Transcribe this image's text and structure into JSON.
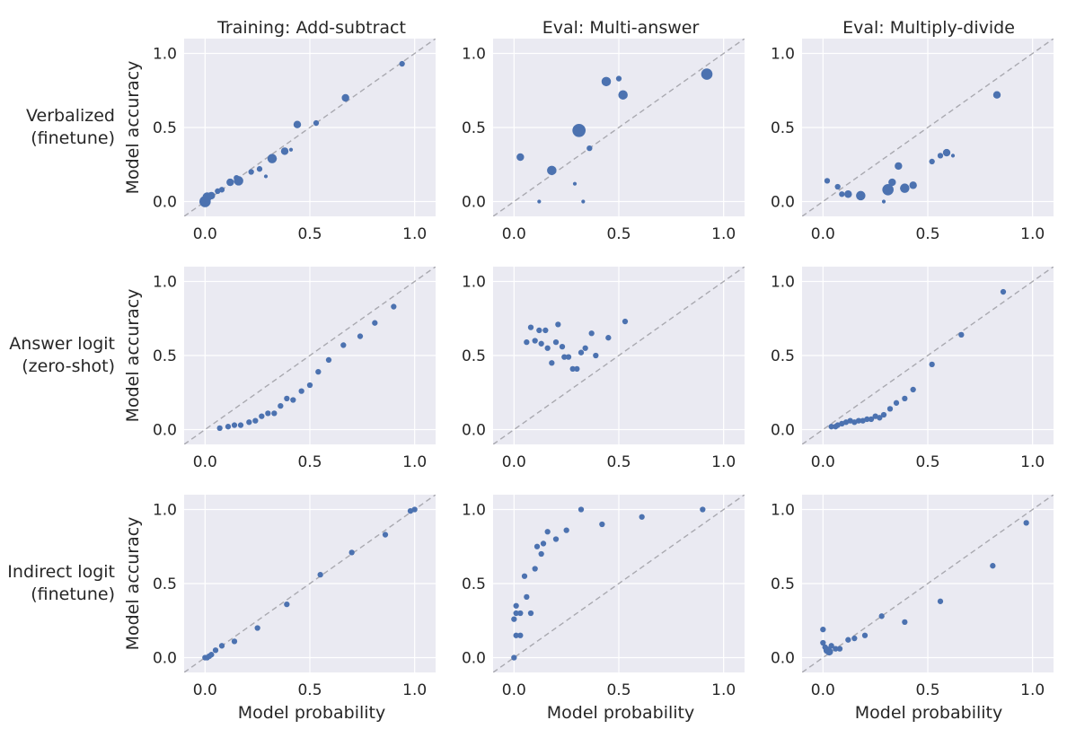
{
  "colors": {
    "background": "#eaeaf2",
    "grid": "#ffffff",
    "point": "#4c72b0",
    "reference_line": "#a9a9b0"
  },
  "column_titles": [
    "Training: Add-subtract",
    "Eval: Multi-answer",
    "Eval: Multiply-divide"
  ],
  "row_labels": [
    {
      "line1": "Verbalized",
      "line2": "(finetune)"
    },
    {
      "line1": "Answer logit",
      "line2": "(zero-shot)"
    },
    {
      "line1": "Indirect logit",
      "line2": "(finetune)"
    }
  ],
  "xlabel": "Model probability",
  "ylabel": "Model accuracy",
  "chart_data": [
    {
      "type": "scatter",
      "row": 0,
      "col": 0,
      "xlim": [
        -0.1,
        1.1
      ],
      "ylim": [
        -0.1,
        1.1
      ],
      "xticks": [
        0.0,
        0.5,
        1.0
      ],
      "yticks": [
        0.0,
        0.5,
        1.0
      ],
      "grid": true,
      "reference_line": "y=x",
      "points": [
        [
          0.0,
          0.0,
          6
        ],
        [
          0.01,
          0.03,
          5
        ],
        [
          0.03,
          0.04,
          4
        ],
        [
          0.06,
          0.07,
          3
        ],
        [
          0.08,
          0.08,
          3
        ],
        [
          0.12,
          0.13,
          4
        ],
        [
          0.16,
          0.14,
          5
        ],
        [
          0.15,
          0.16,
          3
        ],
        [
          0.22,
          0.2,
          3
        ],
        [
          0.26,
          0.22,
          3
        ],
        [
          0.29,
          0.17,
          2
        ],
        [
          0.32,
          0.29,
          5
        ],
        [
          0.38,
          0.34,
          4
        ],
        [
          0.41,
          0.35,
          2
        ],
        [
          0.44,
          0.52,
          4
        ],
        [
          0.53,
          0.53,
          3
        ],
        [
          0.67,
          0.7,
          4
        ],
        [
          0.94,
          0.93,
          3
        ]
      ]
    },
    {
      "type": "scatter",
      "row": 0,
      "col": 1,
      "xlim": [
        -0.1,
        1.1
      ],
      "ylim": [
        -0.1,
        1.1
      ],
      "xticks": [
        0.0,
        0.5,
        1.0
      ],
      "yticks": [
        0.0,
        0.5,
        1.0
      ],
      "grid": true,
      "reference_line": "y=x",
      "points": [
        [
          0.03,
          0.3,
          4
        ],
        [
          0.12,
          0.0,
          2
        ],
        [
          0.18,
          0.21,
          5
        ],
        [
          0.29,
          0.12,
          2
        ],
        [
          0.31,
          0.48,
          7
        ],
        [
          0.33,
          0.0,
          2
        ],
        [
          0.36,
          0.36,
          3
        ],
        [
          0.44,
          0.81,
          5
        ],
        [
          0.5,
          0.83,
          3
        ],
        [
          0.52,
          0.72,
          5
        ],
        [
          0.92,
          0.86,
          6
        ]
      ]
    },
    {
      "type": "scatter",
      "row": 0,
      "col": 2,
      "xlim": [
        -0.1,
        1.1
      ],
      "ylim": [
        -0.1,
        1.1
      ],
      "xticks": [
        0.0,
        0.5,
        1.0
      ],
      "yticks": [
        0.0,
        0.5,
        1.0
      ],
      "grid": true,
      "reference_line": "y=x",
      "points": [
        [
          0.02,
          0.14,
          3
        ],
        [
          0.07,
          0.1,
          3
        ],
        [
          0.09,
          0.05,
          3
        ],
        [
          0.12,
          0.05,
          4
        ],
        [
          0.18,
          0.04,
          5
        ],
        [
          0.29,
          0.0,
          2
        ],
        [
          0.31,
          0.08,
          6
        ],
        [
          0.33,
          0.13,
          4
        ],
        [
          0.36,
          0.24,
          4
        ],
        [
          0.39,
          0.09,
          5
        ],
        [
          0.43,
          0.11,
          4
        ],
        [
          0.52,
          0.27,
          3
        ],
        [
          0.56,
          0.31,
          3
        ],
        [
          0.59,
          0.33,
          4
        ],
        [
          0.62,
          0.31,
          2
        ],
        [
          0.83,
          0.72,
          4
        ]
      ]
    },
    {
      "type": "scatter",
      "row": 1,
      "col": 0,
      "xlim": [
        -0.1,
        1.1
      ],
      "ylim": [
        -0.1,
        1.1
      ],
      "xticks": [
        0.0,
        0.5,
        1.0
      ],
      "yticks": [
        0.0,
        0.5,
        1.0
      ],
      "grid": true,
      "reference_line": "y=x",
      "points": [
        [
          0.07,
          0.01,
          3
        ],
        [
          0.11,
          0.02,
          3
        ],
        [
          0.14,
          0.03,
          3
        ],
        [
          0.17,
          0.03,
          3
        ],
        [
          0.21,
          0.05,
          3
        ],
        [
          0.24,
          0.06,
          3
        ],
        [
          0.27,
          0.09,
          3
        ],
        [
          0.3,
          0.11,
          3
        ],
        [
          0.33,
          0.11,
          3
        ],
        [
          0.36,
          0.16,
          3
        ],
        [
          0.39,
          0.21,
          3
        ],
        [
          0.42,
          0.2,
          3
        ],
        [
          0.46,
          0.26,
          3
        ],
        [
          0.5,
          0.3,
          3
        ],
        [
          0.54,
          0.39,
          3
        ],
        [
          0.59,
          0.47,
          3
        ],
        [
          0.66,
          0.57,
          3
        ],
        [
          0.74,
          0.63,
          3
        ],
        [
          0.81,
          0.72,
          3
        ],
        [
          0.9,
          0.83,
          3
        ]
      ]
    },
    {
      "type": "scatter",
      "row": 1,
      "col": 1,
      "xlim": [
        -0.1,
        1.1
      ],
      "ylim": [
        -0.1,
        1.1
      ],
      "xticks": [
        0.0,
        0.5,
        1.0
      ],
      "yticks": [
        0.0,
        0.5,
        1.0
      ],
      "grid": true,
      "reference_line": "y=x",
      "points": [
        [
          0.06,
          0.59,
          3
        ],
        [
          0.08,
          0.69,
          3
        ],
        [
          0.1,
          0.6,
          3
        ],
        [
          0.12,
          0.67,
          3
        ],
        [
          0.13,
          0.58,
          3
        ],
        [
          0.15,
          0.67,
          3
        ],
        [
          0.16,
          0.55,
          3
        ],
        [
          0.18,
          0.45,
          3
        ],
        [
          0.2,
          0.59,
          3
        ],
        [
          0.21,
          0.71,
          3
        ],
        [
          0.23,
          0.56,
          3
        ],
        [
          0.24,
          0.49,
          3
        ],
        [
          0.26,
          0.49,
          3
        ],
        [
          0.28,
          0.41,
          3
        ],
        [
          0.3,
          0.41,
          3
        ],
        [
          0.32,
          0.52,
          3
        ],
        [
          0.34,
          0.55,
          3
        ],
        [
          0.37,
          0.65,
          3
        ],
        [
          0.39,
          0.5,
          3
        ],
        [
          0.45,
          0.62,
          3
        ],
        [
          0.53,
          0.73,
          3
        ]
      ]
    },
    {
      "type": "scatter",
      "row": 1,
      "col": 2,
      "xlim": [
        -0.1,
        1.1
      ],
      "ylim": [
        -0.1,
        1.1
      ],
      "xticks": [
        0.0,
        0.5,
        1.0
      ],
      "yticks": [
        0.0,
        0.5,
        1.0
      ],
      "grid": true,
      "reference_line": "y=x",
      "points": [
        [
          0.04,
          0.02,
          3
        ],
        [
          0.06,
          0.02,
          3
        ],
        [
          0.07,
          0.03,
          3
        ],
        [
          0.09,
          0.04,
          3
        ],
        [
          0.11,
          0.05,
          3
        ],
        [
          0.13,
          0.06,
          3
        ],
        [
          0.15,
          0.05,
          3
        ],
        [
          0.17,
          0.06,
          3
        ],
        [
          0.19,
          0.06,
          3
        ],
        [
          0.21,
          0.07,
          3
        ],
        [
          0.23,
          0.07,
          3
        ],
        [
          0.25,
          0.09,
          3
        ],
        [
          0.27,
          0.08,
          3
        ],
        [
          0.29,
          0.1,
          3
        ],
        [
          0.32,
          0.14,
          3
        ],
        [
          0.35,
          0.18,
          3
        ],
        [
          0.39,
          0.21,
          3
        ],
        [
          0.43,
          0.27,
          3
        ],
        [
          0.52,
          0.44,
          3
        ],
        [
          0.66,
          0.64,
          3
        ],
        [
          0.86,
          0.93,
          3
        ]
      ]
    },
    {
      "type": "scatter",
      "row": 2,
      "col": 0,
      "xlim": [
        -0.1,
        1.1
      ],
      "ylim": [
        -0.1,
        1.1
      ],
      "xticks": [
        0.0,
        0.5,
        1.0
      ],
      "yticks": [
        0.0,
        0.5,
        1.0
      ],
      "grid": true,
      "reference_line": "y=x",
      "points": [
        [
          0.0,
          0.0,
          3
        ],
        [
          0.01,
          0.0,
          3
        ],
        [
          0.02,
          0.01,
          3
        ],
        [
          0.03,
          0.02,
          3
        ],
        [
          0.05,
          0.05,
          3
        ],
        [
          0.08,
          0.08,
          3
        ],
        [
          0.14,
          0.11,
          3
        ],
        [
          0.25,
          0.2,
          3
        ],
        [
          0.39,
          0.36,
          3
        ],
        [
          0.55,
          0.56,
          3
        ],
        [
          0.7,
          0.71,
          3
        ],
        [
          0.86,
          0.83,
          3
        ],
        [
          0.98,
          0.99,
          3
        ],
        [
          1.0,
          1.0,
          3
        ]
      ]
    },
    {
      "type": "scatter",
      "row": 2,
      "col": 1,
      "xlim": [
        -0.1,
        1.1
      ],
      "ylim": [
        -0.1,
        1.1
      ],
      "xticks": [
        0.0,
        0.5,
        1.0
      ],
      "yticks": [
        0.0,
        0.5,
        1.0
      ],
      "grid": true,
      "reference_line": "y=x",
      "points": [
        [
          0.0,
          0.0,
          3
        ],
        [
          0.0,
          0.26,
          3
        ],
        [
          0.01,
          0.3,
          3
        ],
        [
          0.01,
          0.35,
          3
        ],
        [
          0.01,
          0.15,
          3
        ],
        [
          0.03,
          0.15,
          3
        ],
        [
          0.03,
          0.3,
          3
        ],
        [
          0.05,
          0.55,
          3
        ],
        [
          0.06,
          0.41,
          3
        ],
        [
          0.08,
          0.3,
          3
        ],
        [
          0.1,
          0.6,
          3
        ],
        [
          0.11,
          0.75,
          3
        ],
        [
          0.13,
          0.7,
          3
        ],
        [
          0.14,
          0.77,
          3
        ],
        [
          0.16,
          0.85,
          3
        ],
        [
          0.2,
          0.8,
          3
        ],
        [
          0.25,
          0.86,
          3
        ],
        [
          0.32,
          1.0,
          3
        ],
        [
          0.42,
          0.9,
          3
        ],
        [
          0.61,
          0.95,
          3
        ],
        [
          0.9,
          1.0,
          3
        ]
      ]
    },
    {
      "type": "scatter",
      "row": 2,
      "col": 2,
      "xlim": [
        -0.1,
        1.1
      ],
      "ylim": [
        -0.1,
        1.1
      ],
      "xticks": [
        0.0,
        0.5,
        1.0
      ],
      "yticks": [
        0.0,
        0.5,
        1.0
      ],
      "grid": true,
      "reference_line": "y=x",
      "points": [
        [
          0.0,
          0.19,
          3
        ],
        [
          0.0,
          0.1,
          3
        ],
        [
          0.01,
          0.07,
          3
        ],
        [
          0.02,
          0.05,
          4
        ],
        [
          0.03,
          0.04,
          4
        ],
        [
          0.04,
          0.08,
          3
        ],
        [
          0.06,
          0.06,
          3
        ],
        [
          0.08,
          0.06,
          3
        ],
        [
          0.12,
          0.12,
          3
        ],
        [
          0.15,
          0.13,
          3
        ],
        [
          0.2,
          0.15,
          3
        ],
        [
          0.28,
          0.28,
          3
        ],
        [
          0.39,
          0.24,
          3
        ],
        [
          0.56,
          0.38,
          3
        ],
        [
          0.81,
          0.62,
          3
        ],
        [
          0.97,
          0.91,
          3
        ]
      ]
    }
  ]
}
